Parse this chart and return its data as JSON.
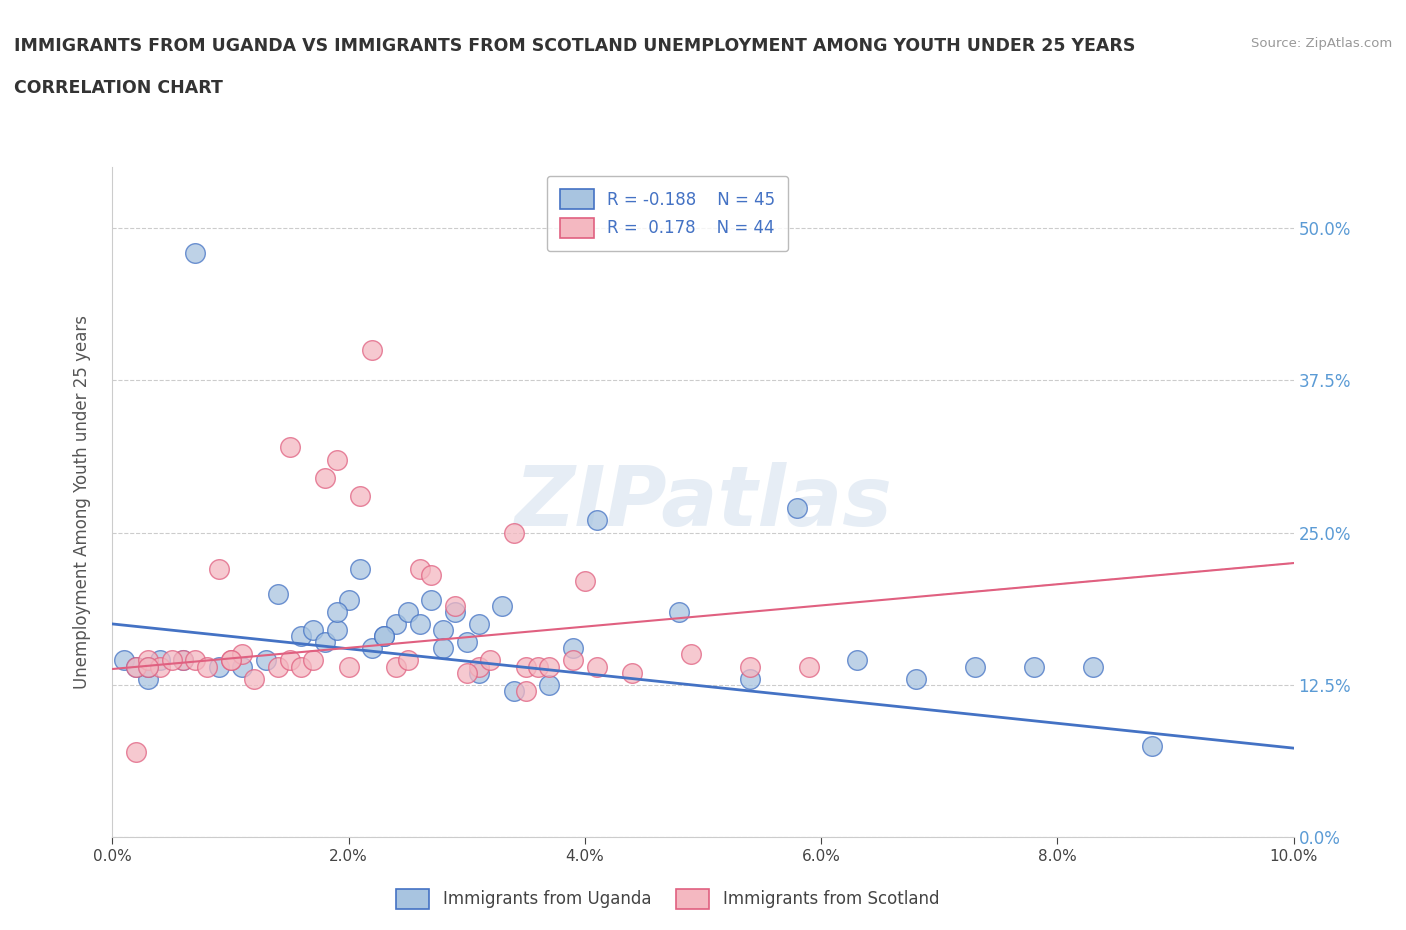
{
  "title_line1": "IMMIGRANTS FROM UGANDA VS IMMIGRANTS FROM SCOTLAND UNEMPLOYMENT AMONG YOUTH UNDER 25 YEARS",
  "title_line2": "CORRELATION CHART",
  "source": "Source: ZipAtlas.com",
  "ylabel": "Unemployment Among Youth under 25 years",
  "xlim": [
    0.0,
    0.1
  ],
  "ylim": [
    0.0,
    0.55
  ],
  "yticks": [
    0.0,
    0.125,
    0.25,
    0.375,
    0.5
  ],
  "ytick_labels": [
    "0.0%",
    "12.5%",
    "25.0%",
    "37.5%",
    "50.0%"
  ],
  "xticks": [
    0.0,
    0.02,
    0.04,
    0.06,
    0.08,
    0.1
  ],
  "xtick_labels": [
    "0.0%",
    "2.0%",
    "4.0%",
    "6.0%",
    "8.0%",
    "10.0%"
  ],
  "color_uganda": "#a8c4e0",
  "color_scotland": "#f4b8c1",
  "color_uganda_border": "#4472c4",
  "color_scotland_border": "#e06080",
  "color_uganda_line": "#4472c4",
  "color_scotland_line": "#e06080",
  "watermark": "ZIPatlas",
  "legend_label1": "Immigrants from Uganda",
  "legend_label2": "Immigrants from Scotland",
  "uganda_x": [
    0.004,
    0.007,
    0.014,
    0.016,
    0.017,
    0.018,
    0.019,
    0.02,
    0.021,
    0.022,
    0.023,
    0.024,
    0.025,
    0.027,
    0.028,
    0.029,
    0.03,
    0.031,
    0.033,
    0.003,
    0.006,
    0.009,
    0.011,
    0.013,
    0.019,
    0.023,
    0.026,
    0.028,
    0.031,
    0.034,
    0.037,
    0.039,
    0.041,
    0.048,
    0.054,
    0.058,
    0.063,
    0.068,
    0.073,
    0.078,
    0.083,
    0.088,
    0.001,
    0.002,
    0.003
  ],
  "uganda_y": [
    0.145,
    0.48,
    0.2,
    0.165,
    0.17,
    0.16,
    0.17,
    0.195,
    0.22,
    0.155,
    0.165,
    0.175,
    0.185,
    0.195,
    0.17,
    0.185,
    0.16,
    0.175,
    0.19,
    0.13,
    0.145,
    0.14,
    0.14,
    0.145,
    0.185,
    0.165,
    0.175,
    0.155,
    0.135,
    0.12,
    0.125,
    0.155,
    0.26,
    0.185,
    0.13,
    0.27,
    0.145,
    0.13,
    0.14,
    0.14,
    0.14,
    0.075,
    0.145,
    0.14,
    0.14
  ],
  "scotland_x": [
    0.002,
    0.003,
    0.004,
    0.006,
    0.007,
    0.009,
    0.01,
    0.011,
    0.012,
    0.014,
    0.015,
    0.015,
    0.016,
    0.017,
    0.018,
    0.019,
    0.02,
    0.021,
    0.024,
    0.025,
    0.026,
    0.027,
    0.029,
    0.031,
    0.032,
    0.034,
    0.035,
    0.036,
    0.037,
    0.039,
    0.04,
    0.041,
    0.044,
    0.049,
    0.054,
    0.059,
    0.002,
    0.003,
    0.005,
    0.008,
    0.01,
    0.022,
    0.03,
    0.035
  ],
  "scotland_y": [
    0.14,
    0.145,
    0.14,
    0.145,
    0.145,
    0.22,
    0.145,
    0.15,
    0.13,
    0.14,
    0.145,
    0.32,
    0.14,
    0.145,
    0.295,
    0.31,
    0.14,
    0.28,
    0.14,
    0.145,
    0.22,
    0.215,
    0.19,
    0.14,
    0.145,
    0.25,
    0.14,
    0.14,
    0.14,
    0.145,
    0.21,
    0.14,
    0.135,
    0.15,
    0.14,
    0.14,
    0.07,
    0.14,
    0.145,
    0.14,
    0.145,
    0.4,
    0.135,
    0.12
  ],
  "uganda_trend_x": [
    0.0,
    0.1
  ],
  "uganda_trend_y": [
    0.175,
    0.073
  ],
  "scotland_trend_x": [
    0.0,
    0.1
  ],
  "scotland_trend_y": [
    0.138,
    0.225
  ]
}
